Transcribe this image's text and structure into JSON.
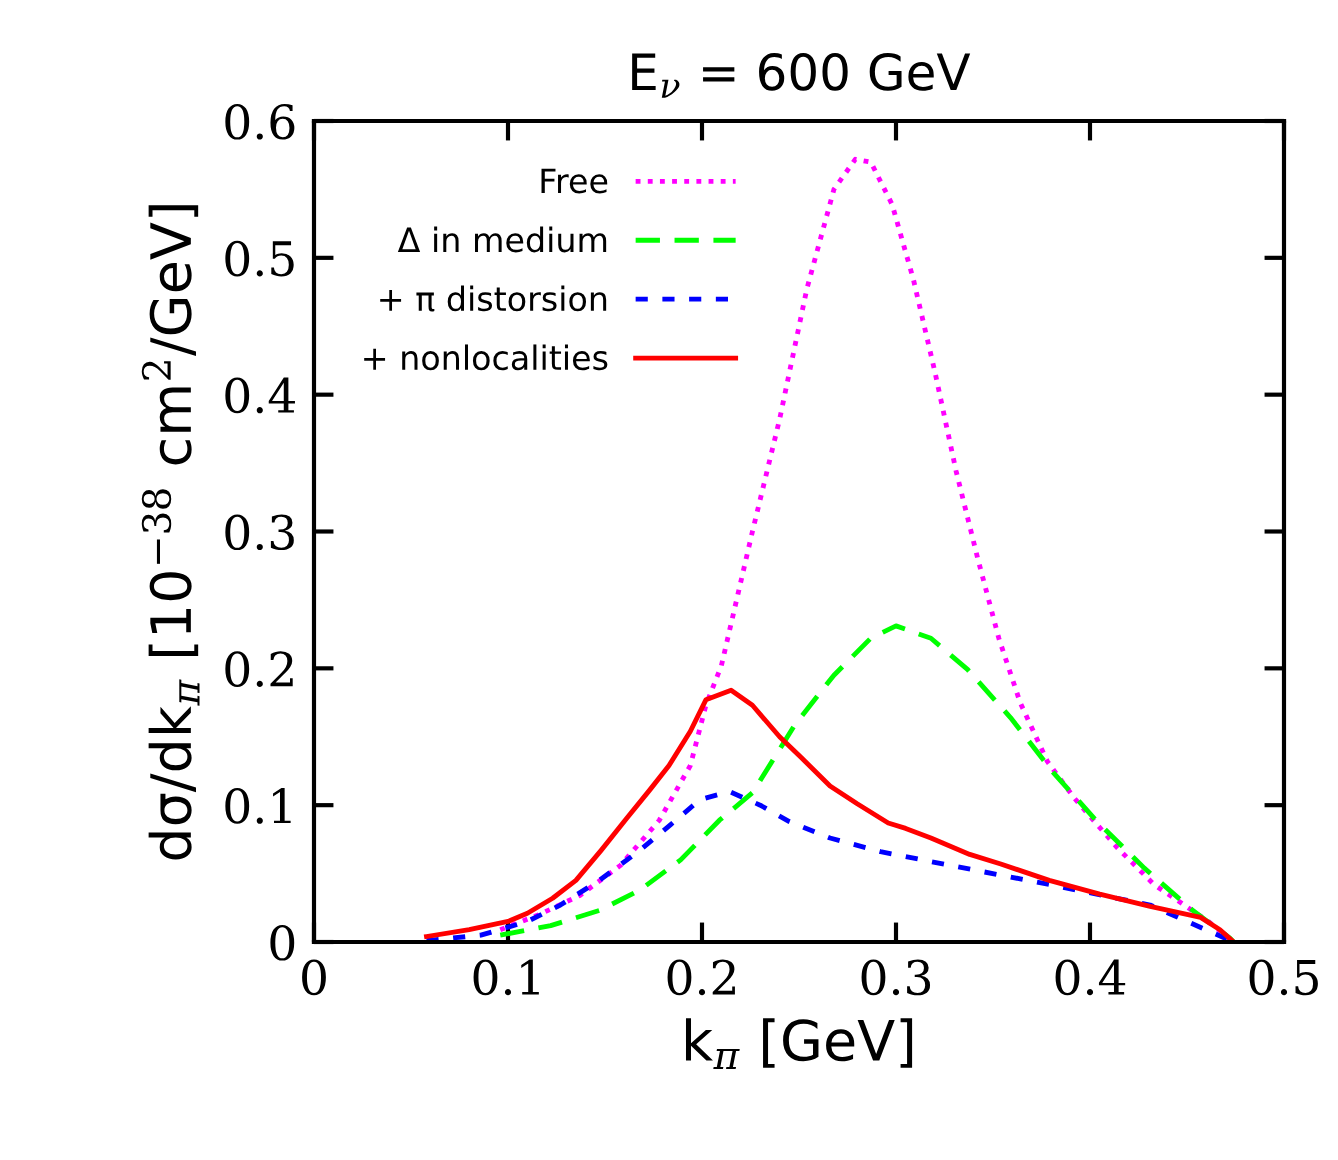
{
  "chart_data": {
    "type": "line",
    "title": "E$_{ν}$ = 600 GeV",
    "xlabel": "k$_{π}$ [GeV]",
    "ylabel": "dσ/dk$_{π}$ [10$^{−38}$ cm$^{2}$/GeV]",
    "xlim": [
      0,
      0.5
    ],
    "ylim": [
      0,
      0.6
    ],
    "xticks": [
      0,
      0.1,
      0.2,
      0.3,
      0.4,
      0.5
    ],
    "yticks": [
      0,
      0.1,
      0.2,
      0.3,
      0.4,
      0.5,
      0.6
    ],
    "grid": false,
    "legend": "top left",
    "marker": "none",
    "series": [
      {
        "name": "Free",
        "color": "#ff00ff",
        "line_style": "dotted",
        "x": [
          0.096,
          0.116,
          0.137,
          0.158,
          0.178,
          0.194,
          0.202,
          0.21,
          0.226,
          0.24,
          0.254,
          0.268,
          0.279,
          0.287,
          0.298,
          0.309,
          0.32,
          0.331,
          0.342,
          0.353,
          0.364,
          0.378,
          0.392,
          0.414,
          0.433,
          0.461,
          0.474
        ],
        "values": [
          0.009,
          0.02,
          0.034,
          0.056,
          0.089,
          0.129,
          0.173,
          0.202,
          0.3,
          0.382,
          0.477,
          0.55,
          0.572,
          0.57,
          0.539,
          0.484,
          0.417,
          0.344,
          0.281,
          0.222,
          0.175,
          0.132,
          0.105,
          0.069,
          0.042,
          0.015,
          0.0
        ]
      },
      {
        "name": "Δ in medium",
        "color": "#00ff00",
        "line_style": "dashed",
        "x": [
          0.096,
          0.122,
          0.147,
          0.168,
          0.189,
          0.209,
          0.226,
          0.248,
          0.268,
          0.287,
          0.3,
          0.318,
          0.337,
          0.359,
          0.381,
          0.403,
          0.428,
          0.453,
          0.472,
          0.474
        ],
        "values": [
          0.005,
          0.012,
          0.023,
          0.038,
          0.06,
          0.089,
          0.109,
          0.159,
          0.195,
          0.222,
          0.231,
          0.222,
          0.199,
          0.164,
          0.124,
          0.089,
          0.054,
          0.023,
          0.003,
          0.0
        ]
      },
      {
        "name": "+ π distorsion",
        "color": "#0000ff",
        "line_style": "dashed_short",
        "x": [
          0.058,
          0.086,
          0.11,
          0.127,
          0.147,
          0.168,
          0.184,
          0.199,
          0.214,
          0.23,
          0.245,
          0.266,
          0.292,
          0.328,
          0.379,
          0.431,
          0.474
        ],
        "values": [
          0.001,
          0.005,
          0.015,
          0.027,
          0.045,
          0.067,
          0.086,
          0.104,
          0.11,
          0.1,
          0.088,
          0.076,
          0.066,
          0.056,
          0.042,
          0.027,
          0.0
        ]
      },
      {
        "name": "+ nonlocalities",
        "color": "#ff0000",
        "line_style": "solid",
        "x": [
          0.058,
          0.08,
          0.1,
          0.11,
          0.123,
          0.135,
          0.148,
          0.161,
          0.173,
          0.183,
          0.194,
          0.202,
          0.215,
          0.226,
          0.24,
          0.251,
          0.266,
          0.28,
          0.296,
          0.305,
          0.318,
          0.338,
          0.354,
          0.379,
          0.405,
          0.431,
          0.457,
          0.467,
          0.474
        ],
        "values": [
          0.004,
          0.009,
          0.015,
          0.021,
          0.032,
          0.045,
          0.067,
          0.09,
          0.111,
          0.129,
          0.154,
          0.177,
          0.184,
          0.173,
          0.15,
          0.135,
          0.114,
          0.101,
          0.087,
          0.083,
          0.076,
          0.064,
          0.057,
          0.045,
          0.035,
          0.026,
          0.018,
          0.009,
          0.0
        ]
      }
    ]
  }
}
